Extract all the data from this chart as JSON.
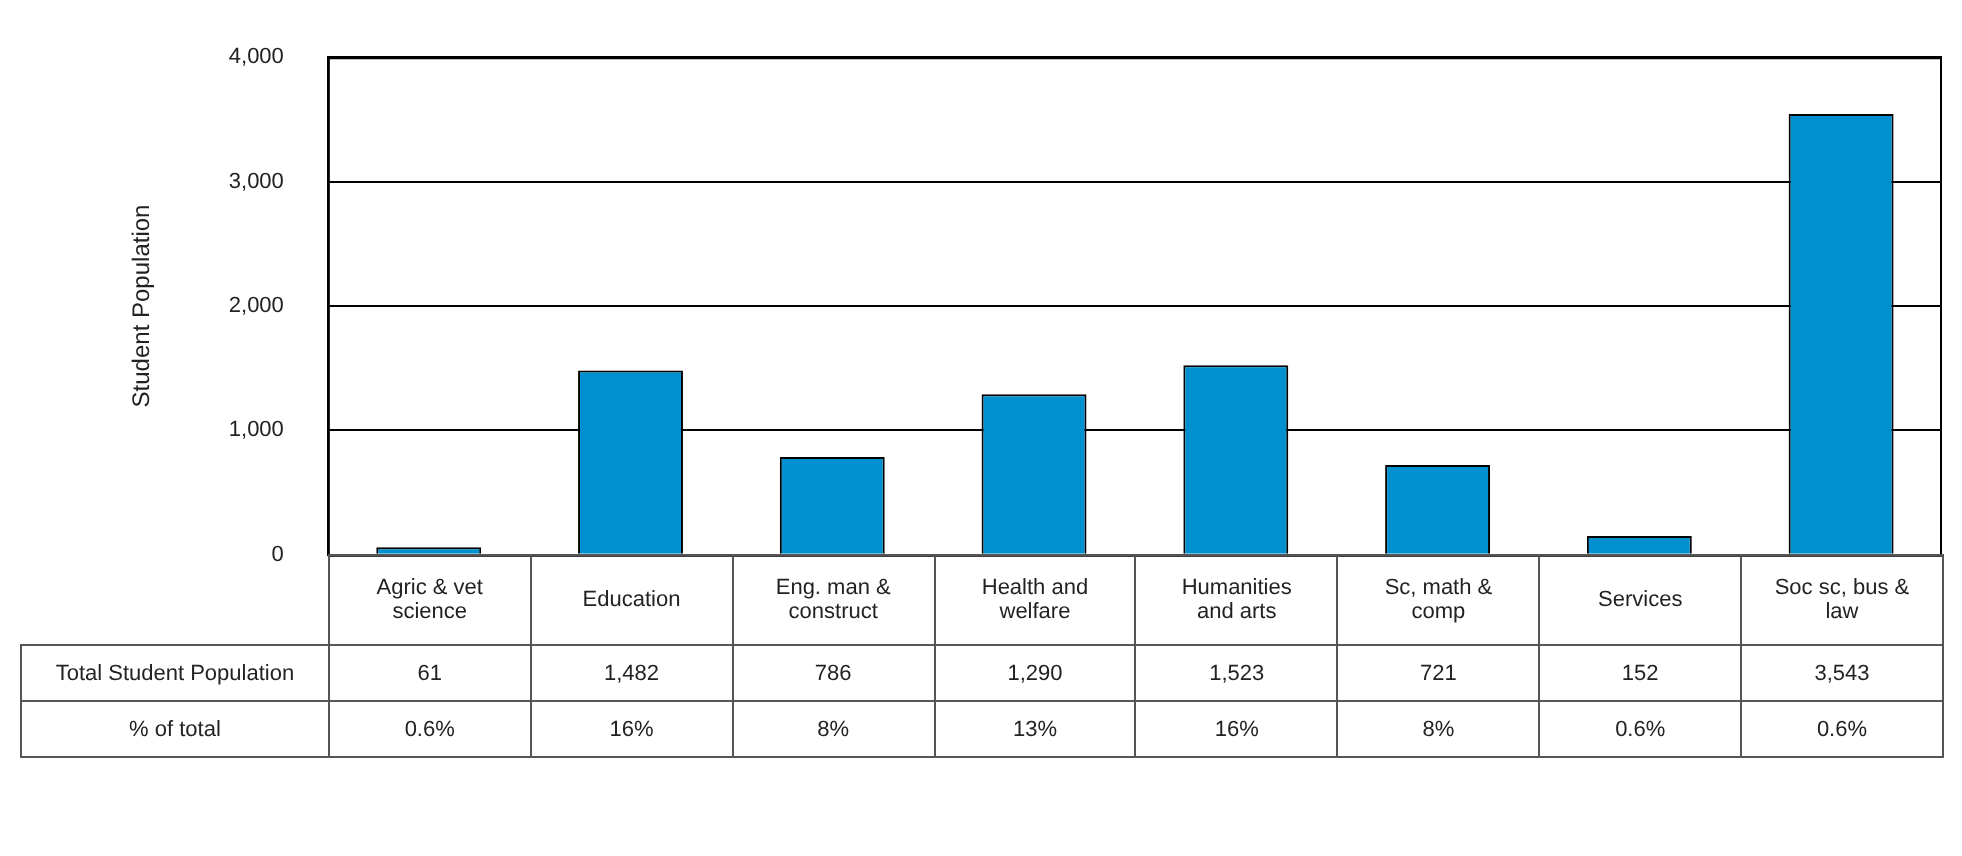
{
  "chart_data": {
    "type": "bar",
    "ylabel": "Student Population",
    "categories": [
      "Agric & vet science",
      "Education",
      "Eng. man & construct",
      "Health and welfare",
      "Humanities and arts",
      "Sc, math & comp",
      "Services",
      "Soc sc, bus & law"
    ],
    "series": [
      {
        "name": "Total Student Population",
        "color": "#0090d0",
        "values": [
          61,
          1482,
          786,
          1290,
          1523,
          721,
          152,
          3543
        ],
        "value_labels": [
          "61",
          "1,482",
          "786",
          "1,290",
          "1,523",
          "721",
          "152",
          "3,543"
        ]
      }
    ],
    "ylim": [
      0,
      4000
    ],
    "yticks": [
      {
        "value": 0,
        "label": "0"
      },
      {
        "value": 1000,
        "label": "1,000"
      },
      {
        "value": 2000,
        "label": "2,000"
      },
      {
        "value": 3000,
        "label": "3,000"
      },
      {
        "value": 4000,
        "label": "4,000"
      }
    ],
    "grid": "y",
    "legend": false,
    "annotations": [
      "% of total",
      "0.6%",
      "16%",
      "8%",
      "13%",
      "16%",
      "8%",
      "0.6%",
      "0.6%"
    ]
  }
}
